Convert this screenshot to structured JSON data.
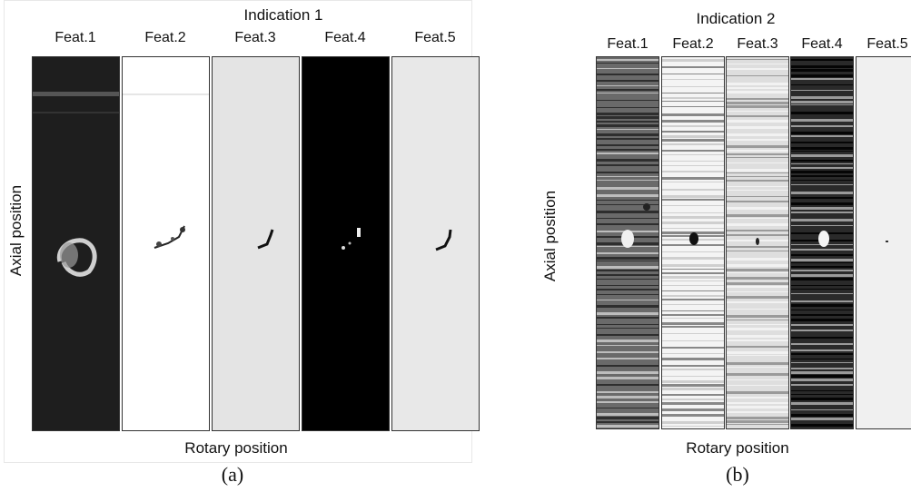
{
  "figure_a": {
    "title": "Indication 1",
    "features": [
      "Feat.1",
      "Feat.2",
      "Feat.3",
      "Feat.4",
      "Feat.5"
    ],
    "ylabel": "Axial position",
    "xlabel": "Rotary position",
    "caption": "(a)"
  },
  "figure_b": {
    "title": "Indication 2",
    "features": [
      "Feat.1",
      "Feat.2",
      "Feat.3",
      "Feat.4",
      "Feat.5"
    ],
    "ylabel": "Axial position",
    "xlabel": "Rotary position",
    "caption": "(b)"
  },
  "strip_tones": {
    "a": [
      "#222222",
      "#ffffff",
      "#e6e6e6",
      "#000000",
      "#e8e8e8"
    ],
    "b": [
      "#6a6a6a",
      "#f4f4f4",
      "#dedede",
      "#2a2a2a",
      "#f0f0f0"
    ]
  }
}
